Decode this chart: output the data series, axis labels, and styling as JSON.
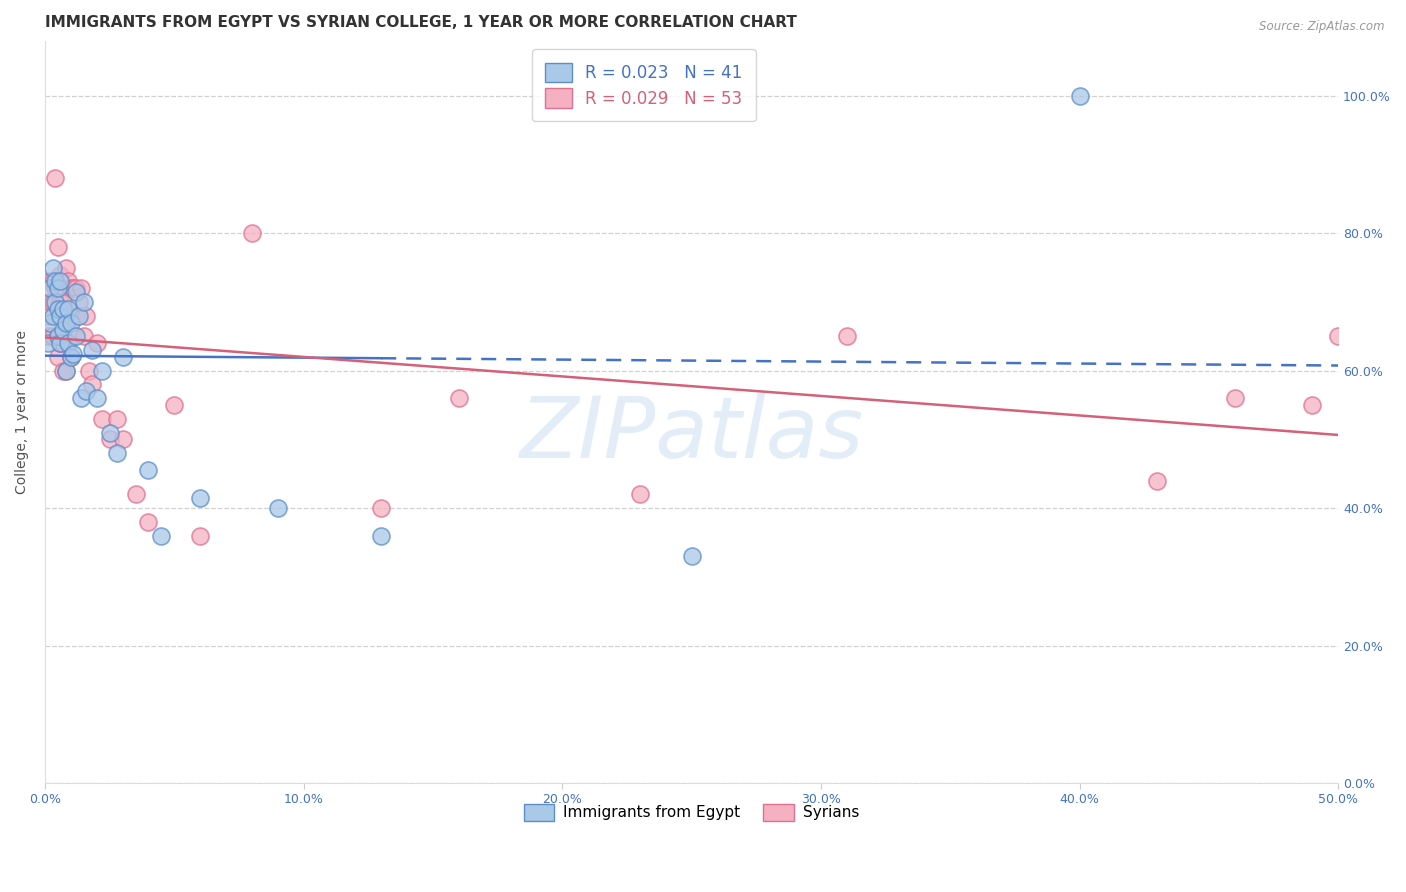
{
  "title": "IMMIGRANTS FROM EGYPT VS SYRIAN COLLEGE, 1 YEAR OR MORE CORRELATION CHART",
  "source": "Source: ZipAtlas.com",
  "ylabel": "College, 1 year or more",
  "xlim": [
    0.0,
    0.5
  ],
  "ylim": [
    0.0,
    1.08
  ],
  "xtick_vals": [
    0.0,
    0.1,
    0.2,
    0.3,
    0.4,
    0.5
  ],
  "xtick_labels": [
    "0.0%",
    "10.0%",
    "20.0%",
    "30.0%",
    "40.0%",
    "50.0%"
  ],
  "ytick_vals": [
    0.0,
    0.2,
    0.4,
    0.6,
    0.8,
    1.0
  ],
  "ytick_labels": [
    "0.0%",
    "20.0%",
    "40.0%",
    "60.0%",
    "80.0%",
    "100.0%"
  ],
  "egypt_R": "0.023",
  "egypt_N": "41",
  "syrian_R": "0.029",
  "syrian_N": "53",
  "egypt_face_color": "#aac8e8",
  "egypt_edge_color": "#5b8fc9",
  "syrian_face_color": "#f5b0c2",
  "syrian_edge_color": "#e07090",
  "egypt_trend_color": "#4472c4",
  "syrian_trend_color": "#d4607a",
  "legend_egypt_label": "Immigrants from Egypt",
  "legend_syrian_label": "Syrians",
  "egypt_x": [
    0.001,
    0.002,
    0.002,
    0.003,
    0.003,
    0.004,
    0.004,
    0.005,
    0.005,
    0.005,
    0.006,
    0.006,
    0.006,
    0.007,
    0.007,
    0.008,
    0.008,
    0.009,
    0.009,
    0.01,
    0.01,
    0.011,
    0.012,
    0.012,
    0.013,
    0.014,
    0.015,
    0.016,
    0.018,
    0.02,
    0.022,
    0.025,
    0.028,
    0.03,
    0.04,
    0.045,
    0.06,
    0.09,
    0.13,
    0.25,
    0.4
  ],
  "egypt_y": [
    0.64,
    0.67,
    0.72,
    0.68,
    0.75,
    0.73,
    0.7,
    0.69,
    0.65,
    0.72,
    0.73,
    0.68,
    0.64,
    0.69,
    0.66,
    0.67,
    0.6,
    0.69,
    0.64,
    0.67,
    0.62,
    0.625,
    0.715,
    0.65,
    0.68,
    0.56,
    0.7,
    0.57,
    0.63,
    0.56,
    0.6,
    0.51,
    0.48,
    0.62,
    0.455,
    0.36,
    0.415,
    0.4,
    0.36,
    0.33,
    1.0
  ],
  "syrian_x": [
    0.001,
    0.001,
    0.002,
    0.002,
    0.003,
    0.003,
    0.003,
    0.004,
    0.004,
    0.005,
    0.005,
    0.005,
    0.006,
    0.006,
    0.006,
    0.007,
    0.007,
    0.007,
    0.008,
    0.008,
    0.008,
    0.009,
    0.009,
    0.01,
    0.01,
    0.011,
    0.011,
    0.012,
    0.012,
    0.013,
    0.014,
    0.015,
    0.016,
    0.017,
    0.018,
    0.02,
    0.022,
    0.025,
    0.028,
    0.03,
    0.035,
    0.04,
    0.05,
    0.06,
    0.08,
    0.13,
    0.16,
    0.23,
    0.31,
    0.43,
    0.46,
    0.49,
    0.5
  ],
  "syrian_y": [
    0.68,
    0.65,
    0.73,
    0.7,
    0.73,
    0.7,
    0.65,
    0.88,
    0.72,
    0.78,
    0.65,
    0.62,
    0.74,
    0.7,
    0.64,
    0.7,
    0.64,
    0.6,
    0.75,
    0.67,
    0.6,
    0.73,
    0.67,
    0.72,
    0.62,
    0.72,
    0.65,
    0.72,
    0.68,
    0.7,
    0.72,
    0.65,
    0.68,
    0.6,
    0.58,
    0.64,
    0.53,
    0.5,
    0.53,
    0.5,
    0.42,
    0.38,
    0.55,
    0.36,
    0.8,
    0.4,
    0.56,
    0.42,
    0.65,
    0.44,
    0.56,
    0.55,
    0.65
  ],
  "watermark": "ZIPatlas",
  "bg_color": "#ffffff",
  "grid_color": "#cccccc",
  "title_fontsize": 11,
  "tick_fontsize": 9,
  "ylabel_fontsize": 10
}
